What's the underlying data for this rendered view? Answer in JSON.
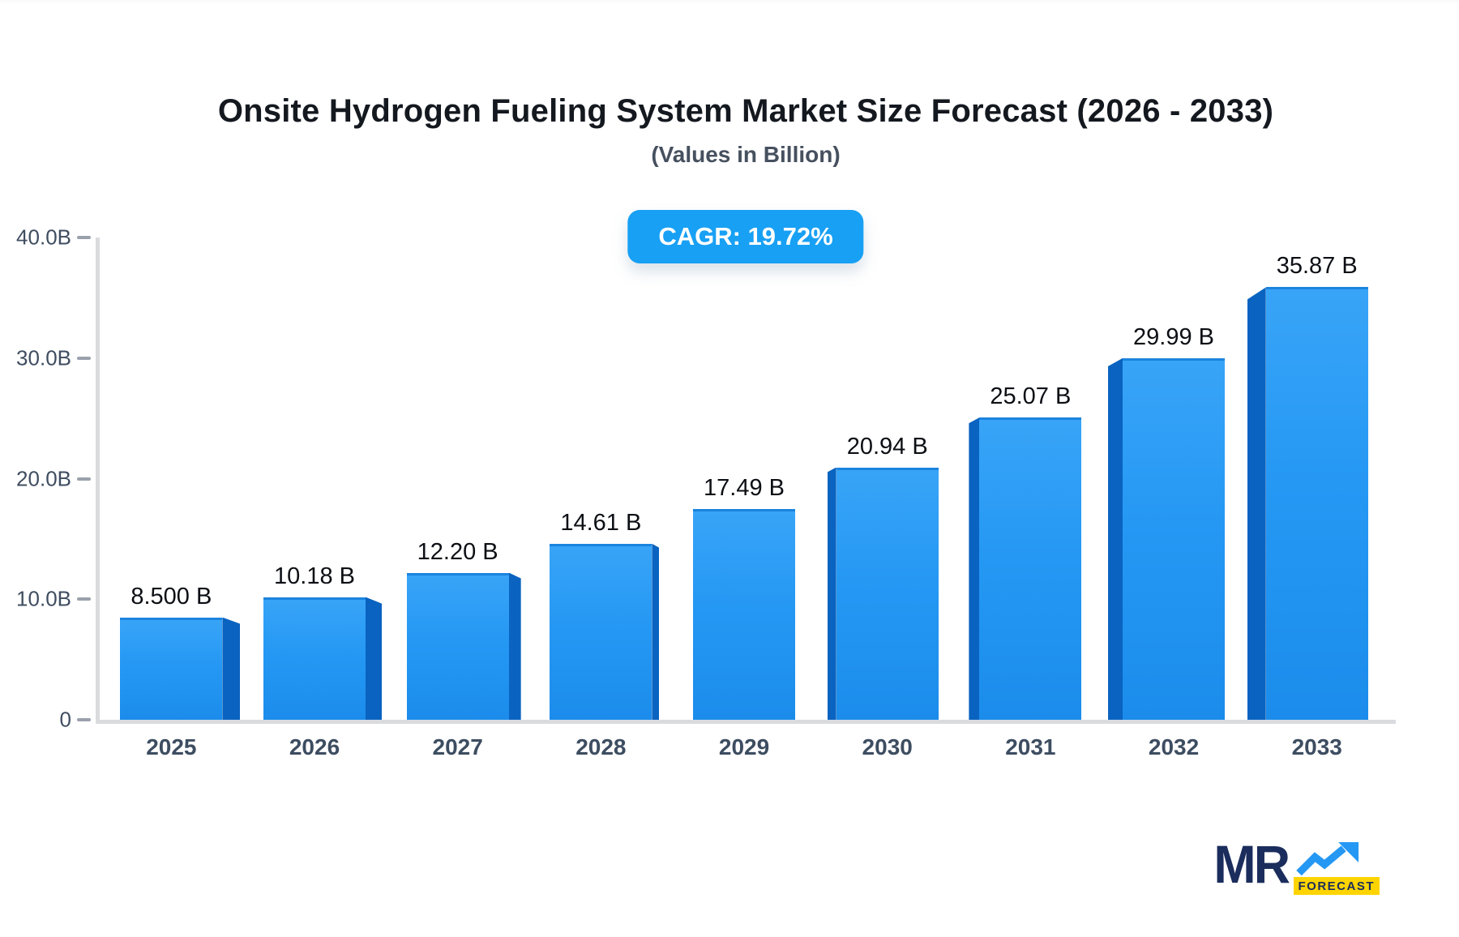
{
  "header": {
    "title": "Onsite Hydrogen Fueling System Market Size Forecast (2026 - 2033)",
    "subtitle": "(Values in Billion)",
    "cagr_badge": "CAGR: 19.72%"
  },
  "chart_data": {
    "type": "bar",
    "title": "Onsite Hydrogen Fueling System Market Size Forecast (2026 - 2033)",
    "subtitle": "(Values in Billion)",
    "xlabel": "",
    "ylabel": "",
    "unit": "Billion",
    "ylim": [
      0,
      40
    ],
    "grid": false,
    "legend": false,
    "categories": [
      "2025",
      "2026",
      "2027",
      "2028",
      "2029",
      "2030",
      "2031",
      "2032",
      "2033"
    ],
    "values": [
      8.5,
      10.18,
      12.2,
      14.61,
      17.49,
      20.94,
      25.07,
      29.99,
      35.87
    ],
    "value_labels": [
      "8.500 B",
      "10.18 B",
      "12.20 B",
      "14.61 B",
      "17.49 B",
      "20.94 B",
      "25.07 B",
      "29.99 B",
      "35.87 B"
    ],
    "yticks": [
      {
        "value": 40,
        "label": "40.0B"
      },
      {
        "value": 30,
        "label": "30.0B"
      },
      {
        "value": 20,
        "label": "20.0B"
      },
      {
        "value": 10,
        "label": "10.0B"
      },
      {
        "value": 0,
        "label": "0"
      }
    ],
    "bar_3d_sides": [
      "right",
      "right",
      "right",
      "right",
      "none",
      "left",
      "left",
      "left",
      "left"
    ],
    "bar_3d_side_widths": [
      22,
      20,
      15,
      9,
      0,
      11,
      13,
      18,
      23
    ],
    "bar_3d_side_drops": [
      8,
      8,
      7,
      5,
      0,
      6,
      7,
      10,
      15
    ]
  },
  "colors": {
    "bar_face": "#2598f4",
    "bar_face_light": "#38a4f7",
    "bar_side": "#0a63c0",
    "bar_top_edge": "#1b84de",
    "badge_bg": "#18a0f4",
    "badge_text": "#ffffff",
    "axis_line": "#d9dbde",
    "tick_dash": "#9aa1ac",
    "axis_text": "#3f4d60",
    "value_text": "#0c0f14",
    "title_text": "#14181f",
    "logo_navy": "#1b2d5c",
    "logo_blue": "#2598f4",
    "logo_yellow": "#ffd400"
  },
  "logo": {
    "mr": "MR",
    "forecast": "FORECAST"
  }
}
